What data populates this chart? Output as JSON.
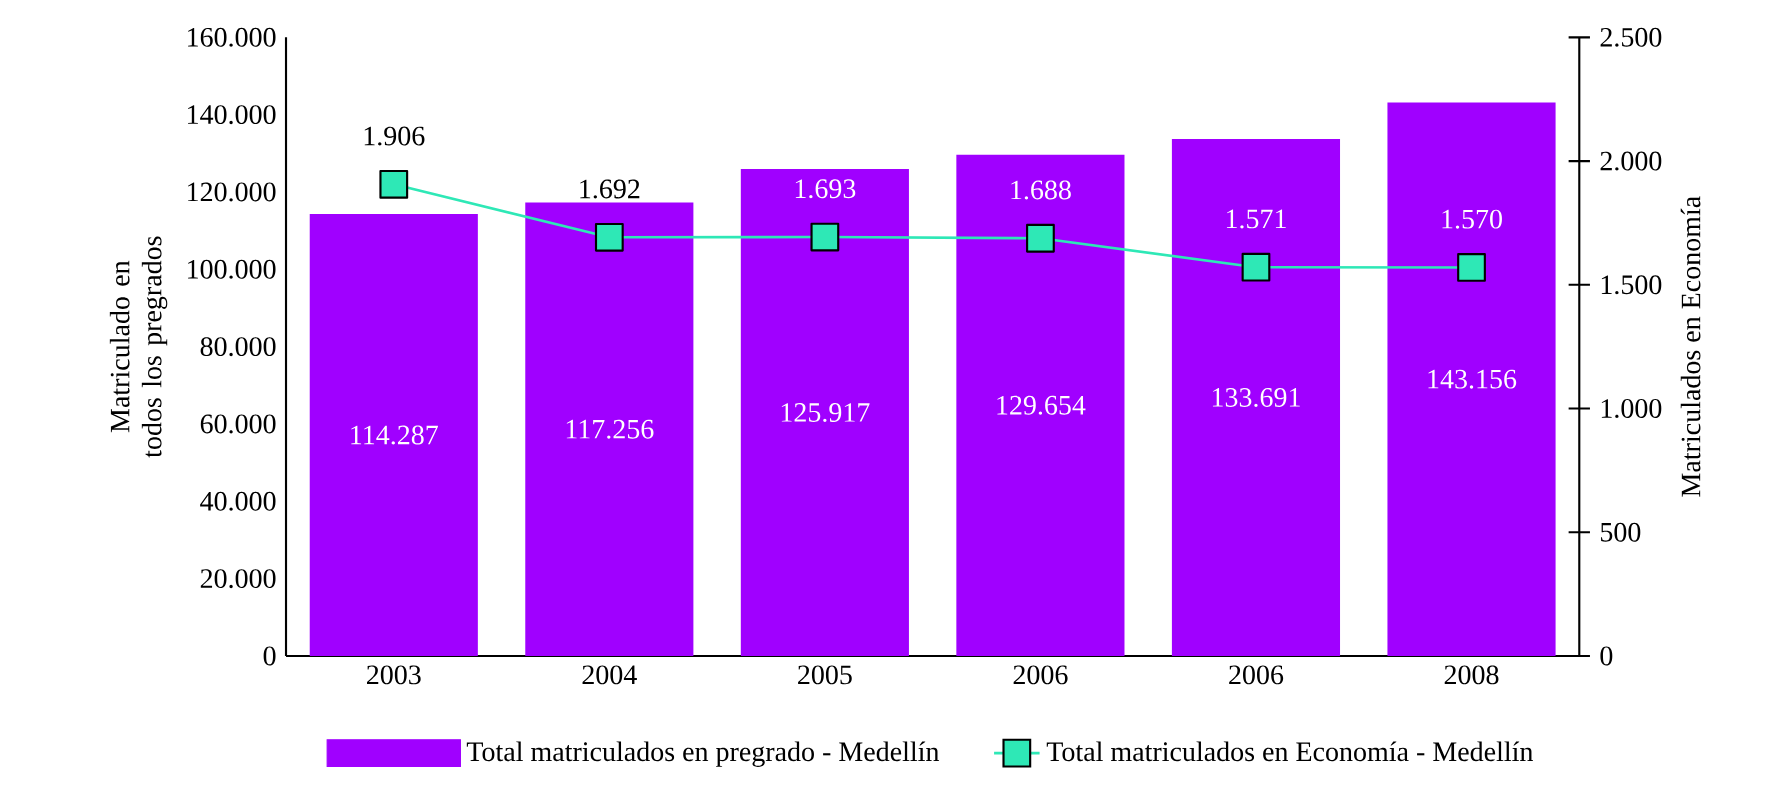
{
  "chart_data": {
    "type": "bar",
    "categories": [
      "2003",
      "2004",
      "2005",
      "2006",
      "2006",
      "2008"
    ],
    "ylabel": "Matriculado en todos los pregrados",
    "y2label": "Matriculados en Economía",
    "ylim": [
      0,
      160000
    ],
    "yticks": [
      0,
      {
        "value": 20000,
        "label": "20.000"
      },
      {
        "value": 40000,
        "label": "40.000"
      },
      {
        "value": 60000,
        "label": "60.000"
      },
      {
        "value": 80000,
        "label": "80.000"
      },
      {
        "value": 100000,
        "label": "100.000"
      },
      {
        "value": 120000,
        "label": "120.000"
      },
      {
        "value": 140000,
        "label": "140.000"
      },
      {
        "value": 160000,
        "label": "160.000"
      }
    ],
    "y2lim": [
      0,
      2500
    ],
    "y2ticks": [
      0,
      500,
      {
        "value": 1000,
        "label": "1.000"
      },
      {
        "value": 1500,
        "label": "1.500"
      },
      {
        "value": 2000,
        "label": "2.000"
      },
      {
        "value": 2500,
        "label": "2.500"
      }
    ],
    "series": [
      {
        "name": "Total matriculados en pregrado - Medellín",
        "color": "#a000ff",
        "values": [
          114287,
          117256,
          125917,
          129654,
          133691,
          143156
        ],
        "value_labels": [
          "114.287",
          "117.256",
          "125.917",
          "129.654",
          "133.691",
          "143.156"
        ]
      },
      {
        "name": "Total matriculados en Economía - Medellín",
        "type": "line",
        "axis": "y2",
        "color": "#2ee8b6",
        "marker": "square",
        "values": [
          1906,
          1692,
          1693,
          1688,
          1571,
          1570
        ],
        "value_labels": [
          "1.906",
          "1.692",
          "1.693",
          "1.688",
          "1.571",
          "1.570"
        ]
      }
    ],
    "legend": "bottom",
    "grid": false
  }
}
